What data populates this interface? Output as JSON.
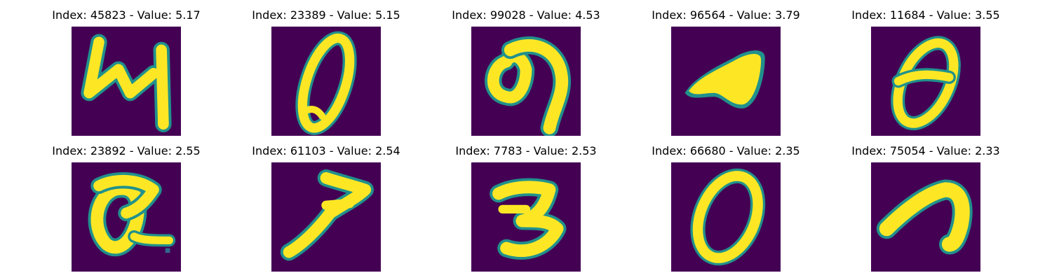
{
  "colors": {
    "background": "#440154",
    "foreground": "#fde725",
    "edge": "#21918c"
  },
  "panels": [
    {
      "title": "Index: 45823 - Value: 5.17",
      "index": 45823,
      "value": 5.17,
      "digit_shape": "4"
    },
    {
      "title": "Index: 23389 - Value: 5.15",
      "index": 23389,
      "value": 5.15,
      "digit_shape": "0"
    },
    {
      "title": "Index: 99028 - Value: 4.53",
      "index": 99028,
      "value": 4.53,
      "digit_shape": "9"
    },
    {
      "title": "Index: 96564 - Value: 3.79",
      "index": 96564,
      "value": 3.79,
      "digit_shape": "blob"
    },
    {
      "title": "Index: 11684 - Value: 3.55",
      "index": 11684,
      "value": 3.55,
      "digit_shape": "8"
    },
    {
      "title": "Index: 23892 - Value: 2.55",
      "index": 23892,
      "value": 2.55,
      "digit_shape": "a"
    },
    {
      "title": "Index: 61103 - Value: 2.54",
      "index": 61103,
      "value": 2.54,
      "digit_shape": "7"
    },
    {
      "title": "Index: 7783 - Value: 2.53",
      "index": 7783,
      "value": 2.53,
      "digit_shape": "z"
    },
    {
      "title": "Index: 66680 - Value: 2.35",
      "index": 66680,
      "value": 2.35,
      "digit_shape": "0"
    },
    {
      "title": "Index: 75054 - Value: 2.33",
      "index": 75054,
      "value": 2.33,
      "digit_shape": "n"
    }
  ]
}
